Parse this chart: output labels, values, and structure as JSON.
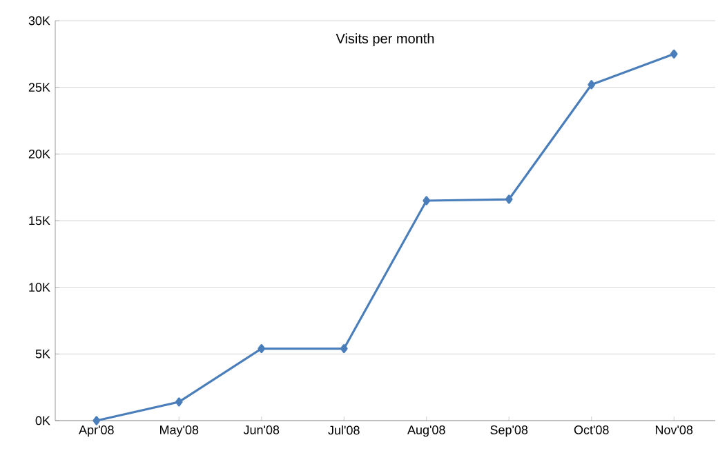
{
  "chart_data": {
    "type": "line",
    "title": "Visits per month",
    "categories": [
      "Apr'08",
      "May'08",
      "Jun'08",
      "Jul'08",
      "Aug'08",
      "Sep'08",
      "Oct'08",
      "Nov'08"
    ],
    "series": [
      {
        "color": "#4a7ebb",
        "values": [
          0,
          1400,
          5400,
          5400,
          16500,
          16600,
          25200,
          27500
        ]
      }
    ],
    "ylim": [
      0,
      30000
    ],
    "yticks": [
      {
        "value": 0,
        "label": "0K"
      },
      {
        "value": 5000,
        "label": "5K"
      },
      {
        "value": 10000,
        "label": "10K"
      },
      {
        "value": 15000,
        "label": "15K"
      },
      {
        "value": 20000,
        "label": "20K"
      },
      {
        "value": 25000,
        "label": "25K"
      },
      {
        "value": 30000,
        "label": "30K"
      }
    ],
    "grid": "y",
    "marker": "diamond",
    "line_style": "solid"
  }
}
